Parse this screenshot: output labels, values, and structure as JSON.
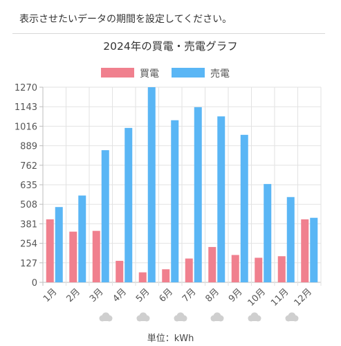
{
  "notice": {
    "text": "表示させたいデータの期間を設定してください。"
  },
  "unit_label": "単位：kWh",
  "colors": {
    "buy": "#f0808e",
    "sell": "#5ab6f5",
    "grid": "#e2e2e2",
    "axis": "#bdbdbd",
    "cloud": "#cfcfcf"
  },
  "weather_icons": [
    "cloud-icon",
    "cloud-icon",
    "cloud-icon",
    "cloud-icon",
    "cloud-icon",
    "cloud-icon"
  ],
  "chart_data": {
    "type": "bar",
    "title": "2024年の買電・売電グラフ",
    "categories": [
      "1月",
      "2月",
      "3月",
      "4月",
      "5月",
      "6月",
      "7月",
      "8月",
      "9月",
      "10月",
      "11月",
      "12月"
    ],
    "series": [
      {
        "name": "買電",
        "values": [
          410,
          330,
          335,
          140,
          65,
          85,
          155,
          230,
          178,
          160,
          170,
          410
        ]
      },
      {
        "name": "売電",
        "values": [
          490,
          565,
          860,
          1005,
          1270,
          1055,
          1140,
          1080,
          960,
          640,
          555,
          420
        ]
      }
    ],
    "yticks": [
      "0",
      "127",
      "254",
      "381",
      "508",
      "635",
      "762",
      "889",
      "1016",
      "1143",
      "1270"
    ],
    "ylim": [
      0,
      1270
    ],
    "grid": true,
    "legend_position": "top-center"
  }
}
